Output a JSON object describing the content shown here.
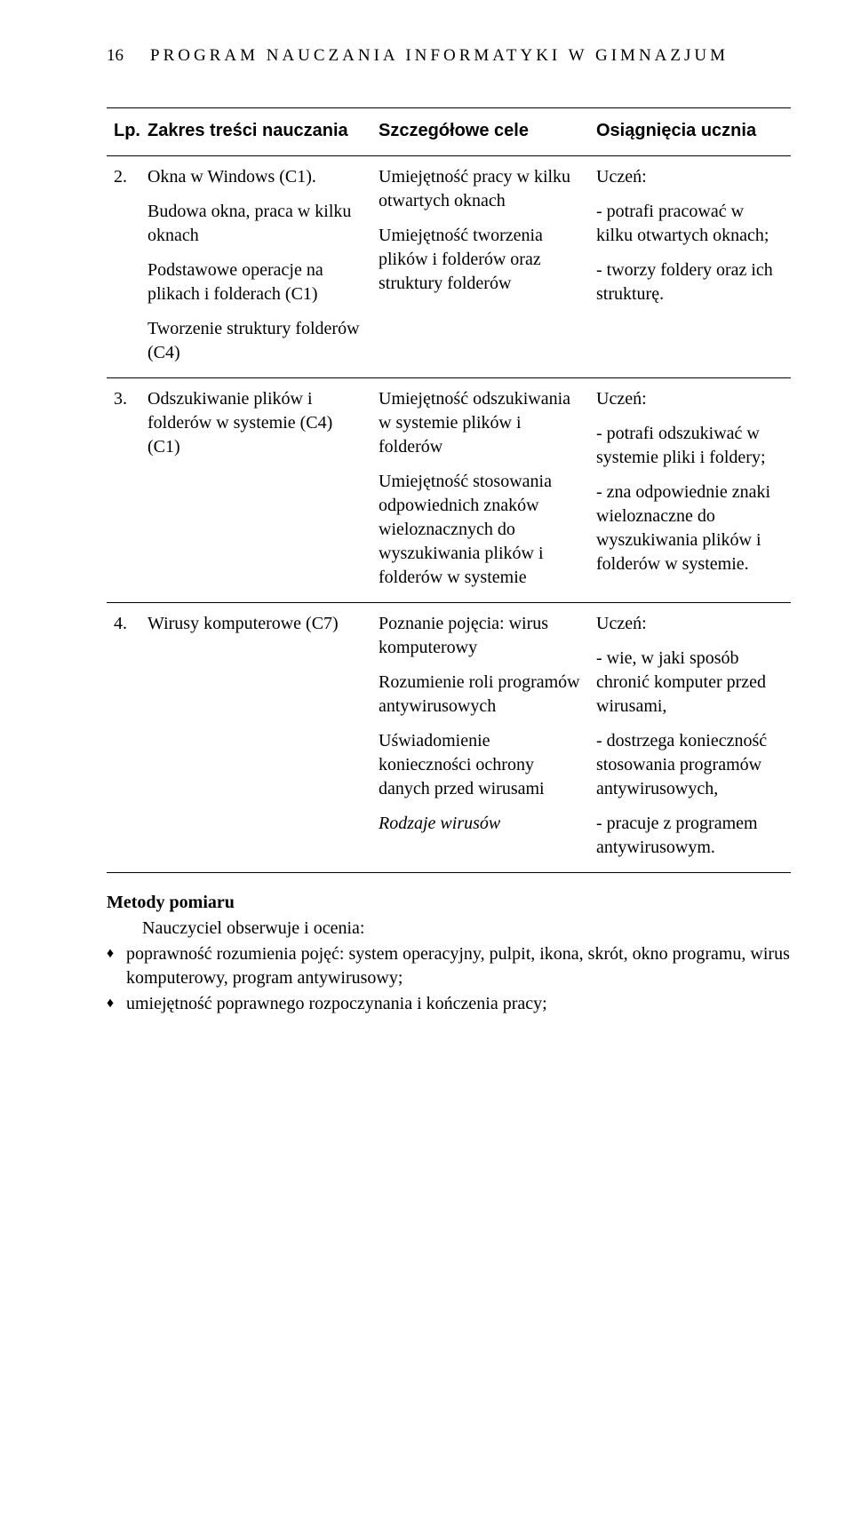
{
  "header": {
    "page_number": "16",
    "title": "PROGRAM NAUCZANIA INFORMATYKI W GIMNAZJUM"
  },
  "table": {
    "headers": {
      "lp": "Lp.",
      "scope": "Zakres treści nauczania",
      "goals": "Szczegółowe cele",
      "outcomes": "Osiągnięcia ucznia"
    },
    "rows": [
      {
        "lp": "2.",
        "scope_paras": [
          "Okna w Windows (C1).",
          "Budowa okna, praca w kilku oknach",
          "Podstawowe operacje na plikach i folderach (C1)",
          "Tworzenie struktury folderów (C4)"
        ],
        "goals_paras": [
          "Umiejętność pracy w kilku otwartych oknach",
          "Umiejętność tworzenia plików i folderów oraz struktury folderów"
        ],
        "outcomes_paras": [
          "Uczeń:",
          "- potrafi pracować w kilku otwartych oknach;",
          "- tworzy foldery oraz ich strukturę."
        ]
      },
      {
        "lp": "3.",
        "scope_paras": [
          "Odszukiwanie plików i folderów w systemie (C4) (C1)"
        ],
        "goals_paras": [
          "Umiejętność odszukiwania w systemie plików i folderów",
          "Umiejętność stosowania odpowiednich znaków wieloznacznych do wyszukiwania plików i folderów w systemie"
        ],
        "outcomes_paras": [
          "Uczeń:",
          "- potrafi odszukiwać w systemie pliki i foldery;",
          "- zna odpowiednie znaki wieloznaczne do wyszukiwania plików i folderów w systemie."
        ]
      },
      {
        "lp": "4.",
        "scope_paras": [
          "Wirusy komputerowe (C7)"
        ],
        "goals_paras": [
          "Poznanie pojęcia: wirus komputerowy",
          "Rozumienie roli programów antywirusowych",
          "Uświadomienie konieczności ochrony danych przed wirusami"
        ],
        "goals_italic": "Rodzaje wirusów",
        "outcomes_paras": [
          "Uczeń:",
          "- wie, w jaki sposób chronić komputer przed wirusami,",
          "- dostrzega konieczność stosowania programów antywirusowych,",
          "- pracuje z programem antywirusowym."
        ]
      }
    ]
  },
  "methods": {
    "title": "Metody pomiaru",
    "intro": "Nauczyciel obserwuje i ocenia:",
    "bullets": [
      "poprawność rozumienia pojęć: system operacyjny, pulpit, ikona, skrót, okno programu, wirus komputerowy, program antywirusowy;",
      "umiejętność poprawnego rozpoczynania i kończenia pracy;"
    ]
  }
}
